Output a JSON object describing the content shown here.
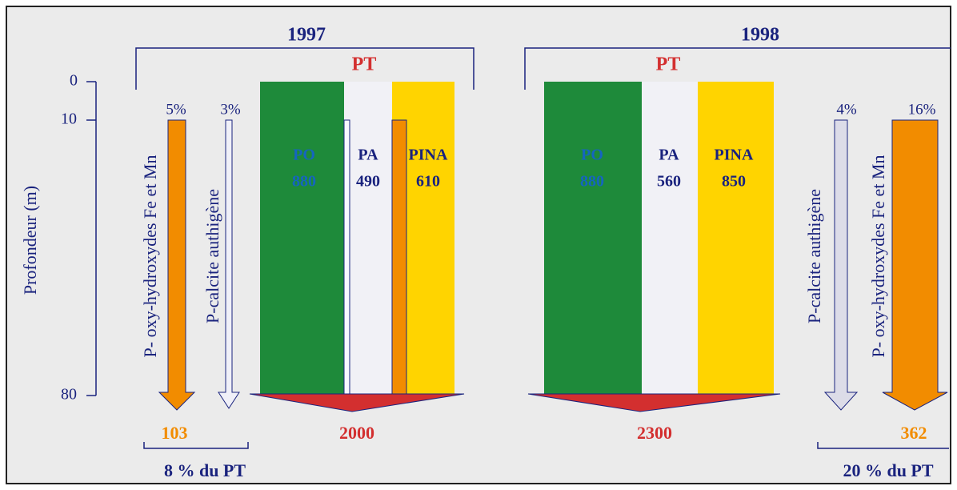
{
  "axis": {
    "title": "Profondeur (m)",
    "ticks": [
      "0",
      "10",
      "80"
    ]
  },
  "panels": [
    {
      "year": "1997",
      "total_label": "PT",
      "bars": [
        {
          "name": "PO",
          "value": "880"
        },
        {
          "name": "PA",
          "value": "490"
        },
        {
          "name": "PINA",
          "value": "610"
        }
      ],
      "total": "2000",
      "fluxes": [
        {
          "label": "P- oxy-hydroxydes Fe et Mn",
          "percent": "5%",
          "value": "103"
        },
        {
          "label": "P-calcite authigène",
          "percent": "3%"
        }
      ],
      "share": "8 % du PT"
    },
    {
      "year": "1998",
      "total_label": "PT",
      "bars": [
        {
          "name": "PO",
          "value": "880"
        },
        {
          "name": "PA",
          "value": "560"
        },
        {
          "name": "PINA",
          "value": "850"
        }
      ],
      "total": "2300",
      "fluxes": [
        {
          "label": "P-calcite authigène",
          "percent": "4%"
        },
        {
          "label": "P- oxy-hydroxydes Fe et Mn",
          "percent": "16%",
          "value": "362"
        }
      ],
      "share": "20 % du PT"
    }
  ]
}
